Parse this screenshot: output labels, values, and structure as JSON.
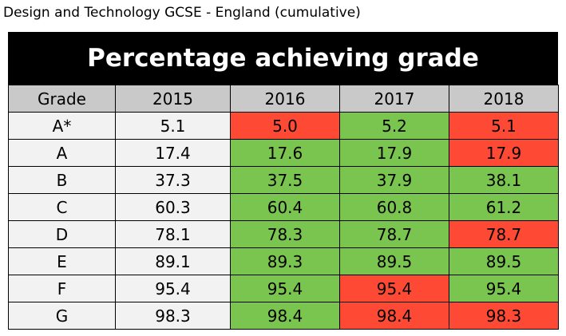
{
  "caption": "Design and Technology GCSE - England (cumulative)",
  "banner_title": "Percentage achieving grade",
  "colors": {
    "increase": "#7ac54f",
    "decrease": "#fe4a34",
    "neutral": "#f2f2f2",
    "header": "#c9c9c9"
  },
  "columns": [
    "Grade",
    "2015",
    "2016",
    "2017",
    "2018"
  ],
  "rows": [
    {
      "grade": "A*",
      "cells": [
        {
          "value": "5.1",
          "status": "base"
        },
        {
          "value": "5.0",
          "status": "down"
        },
        {
          "value": "5.2",
          "status": "up"
        },
        {
          "value": "5.1",
          "status": "down"
        }
      ]
    },
    {
      "grade": "A",
      "cells": [
        {
          "value": "17.4",
          "status": "base"
        },
        {
          "value": "17.6",
          "status": "up"
        },
        {
          "value": "17.9",
          "status": "up"
        },
        {
          "value": "17.9",
          "status": "down"
        }
      ]
    },
    {
      "grade": "B",
      "cells": [
        {
          "value": "37.3",
          "status": "base"
        },
        {
          "value": "37.5",
          "status": "up"
        },
        {
          "value": "37.9",
          "status": "up"
        },
        {
          "value": "38.1",
          "status": "up"
        }
      ]
    },
    {
      "grade": "C",
      "cells": [
        {
          "value": "60.3",
          "status": "base"
        },
        {
          "value": "60.4",
          "status": "up"
        },
        {
          "value": "60.8",
          "status": "up"
        },
        {
          "value": "61.2",
          "status": "up"
        }
      ]
    },
    {
      "grade": "D",
      "cells": [
        {
          "value": "78.1",
          "status": "base"
        },
        {
          "value": "78.3",
          "status": "up"
        },
        {
          "value": "78.7",
          "status": "up"
        },
        {
          "value": "78.7",
          "status": "down"
        }
      ]
    },
    {
      "grade": "E",
      "cells": [
        {
          "value": "89.1",
          "status": "base"
        },
        {
          "value": "89.3",
          "status": "up"
        },
        {
          "value": "89.5",
          "status": "up"
        },
        {
          "value": "89.5",
          "status": "up"
        }
      ]
    },
    {
      "grade": "F",
      "cells": [
        {
          "value": "95.4",
          "status": "base"
        },
        {
          "value": "95.4",
          "status": "up"
        },
        {
          "value": "95.4",
          "status": "down"
        },
        {
          "value": "95.4",
          "status": "up"
        }
      ]
    },
    {
      "grade": "G",
      "cells": [
        {
          "value": "98.3",
          "status": "base"
        },
        {
          "value": "98.4",
          "status": "up"
        },
        {
          "value": "98.4",
          "status": "down"
        },
        {
          "value": "98.3",
          "status": "down"
        }
      ]
    }
  ]
}
